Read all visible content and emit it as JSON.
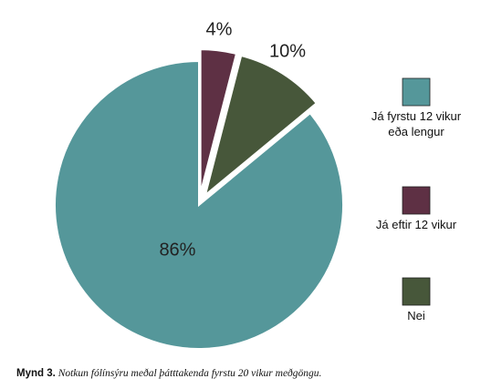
{
  "chart_data": {
    "type": "pie",
    "categories": [
      "Já fyrstu 12 vikur eða lengur",
      "Já eftir 12 vikur",
      "Nei"
    ],
    "values": [
      86,
      4,
      10
    ],
    "value_labels": [
      "86%",
      "4%",
      "10%"
    ],
    "legend_lines": [
      [
        "Já fyrstu 12 vikur",
        "eða lengur"
      ],
      [
        "Já eftir 12 vikur"
      ],
      [
        "Nei"
      ]
    ],
    "colors": [
      "#55979a",
      "#5e3044",
      "#47573a"
    ],
    "exploded": [
      false,
      true,
      true
    ],
    "legend_placement": "right"
  },
  "caption": {
    "label": "Mynd 3.",
    "text": "Notkun fólínsýru meðal þátttakenda fyrstu 20 vikur meðgöngu."
  }
}
